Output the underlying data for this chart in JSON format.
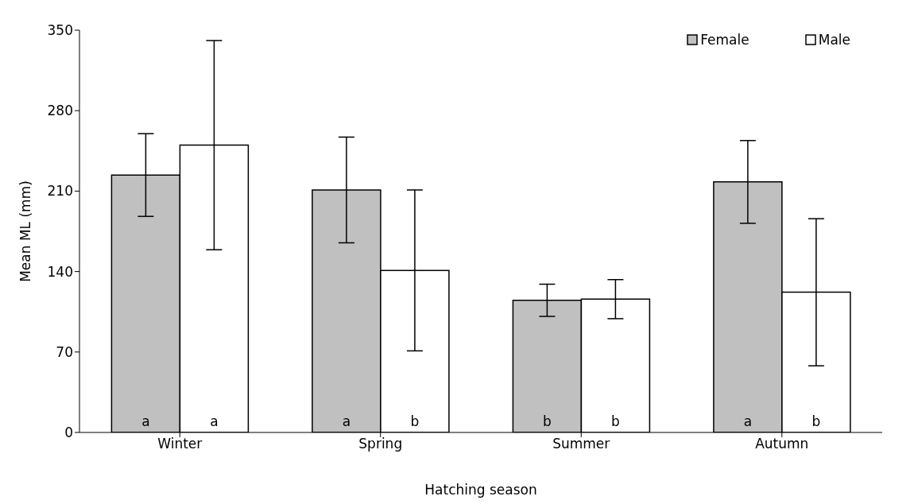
{
  "chart_data": {
    "type": "bar",
    "xlabel": "Hatching season",
    "ylabel": "Mean ML (mm)",
    "categories": [
      "Winter",
      "Spring",
      "Summer",
      "Autumn"
    ],
    "series": [
      {
        "name": "Female",
        "color": "#c0c0c0",
        "values": [
          224,
          211,
          115,
          218
        ],
        "errors": [
          36,
          46,
          14,
          36
        ],
        "value_labels": [
          "a",
          "a",
          "b",
          "a"
        ]
      },
      {
        "name": "Male",
        "color": "#ffffff",
        "values": [
          250,
          141,
          116,
          122
        ],
        "errors": [
          91,
          70,
          17,
          64
        ],
        "value_labels": [
          "a",
          "b",
          "b",
          "b"
        ]
      }
    ],
    "ylim": [
      0,
      350
    ],
    "yticks": [
      0,
      70,
      140,
      210,
      280,
      350
    ],
    "grid": false,
    "legend": "top right"
  }
}
